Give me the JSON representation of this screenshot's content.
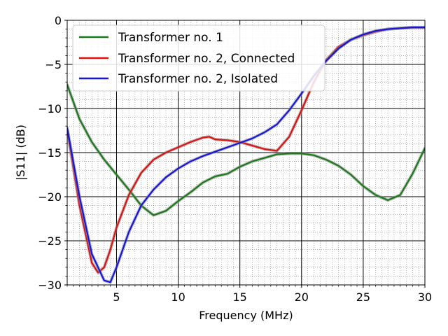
{
  "chart_data": {
    "type": "line",
    "xlabel": "Frequency (MHz)",
    "ylabel": "|S11| (dB)",
    "xlim": [
      1,
      30
    ],
    "ylim": [
      -30,
      0
    ],
    "x_ticks": [
      5,
      10,
      15,
      20,
      25,
      30
    ],
    "y_ticks": [
      0,
      -5,
      -10,
      -15,
      -20,
      -25,
      -30
    ],
    "grid": "major and minor",
    "legend_position": "top-left",
    "series": [
      {
        "name": "Transformer no. 1",
        "color": "#1a7a1a",
        "x": [
          1,
          2,
          3,
          4,
          5,
          6,
          7,
          8,
          9,
          10,
          11,
          12,
          13,
          14,
          15,
          16,
          17,
          18,
          19,
          20,
          21,
          22,
          23,
          24,
          25,
          26,
          27,
          28,
          29,
          30
        ],
        "y": [
          -7.3,
          -11.2,
          -13.8,
          -15.8,
          -17.5,
          -19.2,
          -21.0,
          -22.1,
          -21.6,
          -20.5,
          -19.5,
          -18.4,
          -17.7,
          -17.4,
          -16.6,
          -16.0,
          -15.6,
          -15.2,
          -15.1,
          -15.1,
          -15.3,
          -15.8,
          -16.5,
          -17.5,
          -18.8,
          -19.8,
          -20.4,
          -19.8,
          -17.4,
          -14.5
        ]
      },
      {
        "name": "Transformer no. 2, Connected",
        "color": "#dd1111",
        "x": [
          1,
          2,
          3,
          3.5,
          4,
          4.5,
          5,
          6,
          7,
          8,
          9,
          10,
          11,
          12,
          12.5,
          13,
          14,
          15,
          16,
          17,
          18,
          19,
          20,
          21,
          22,
          23,
          24,
          25,
          26,
          27,
          28,
          29,
          30
        ],
        "y": [
          -12.5,
          -21.0,
          -27.5,
          -28.6,
          -28.0,
          -26.0,
          -23.5,
          -19.8,
          -17.3,
          -15.8,
          -15.0,
          -14.4,
          -13.8,
          -13.3,
          -13.2,
          -13.5,
          -13.6,
          -13.8,
          -14.2,
          -14.6,
          -14.8,
          -13.2,
          -10.2,
          -7.0,
          -4.5,
          -3.0,
          -2.2,
          -1.7,
          -1.3,
          -1.0,
          -0.9,
          -0.8,
          -0.8
        ]
      },
      {
        "name": "Transformer no. 2, Isolated",
        "color": "#1515dd",
        "x": [
          1,
          2,
          3,
          4,
          4.5,
          5,
          6,
          7,
          8,
          9,
          10,
          11,
          12,
          13,
          14,
          15,
          16,
          17,
          18,
          19,
          20,
          21,
          22,
          23,
          24,
          25,
          26,
          27,
          28,
          29,
          30
        ],
        "y": [
          -12.2,
          -20.0,
          -26.5,
          -29.5,
          -29.7,
          -28.0,
          -24.0,
          -21.0,
          -19.2,
          -17.8,
          -16.8,
          -16.0,
          -15.4,
          -14.9,
          -14.4,
          -13.9,
          -13.4,
          -12.7,
          -11.8,
          -10.2,
          -8.3,
          -6.3,
          -4.6,
          -3.2,
          -2.2,
          -1.6,
          -1.2,
          -1.0,
          -0.9,
          -0.8,
          -0.8
        ]
      }
    ]
  }
}
